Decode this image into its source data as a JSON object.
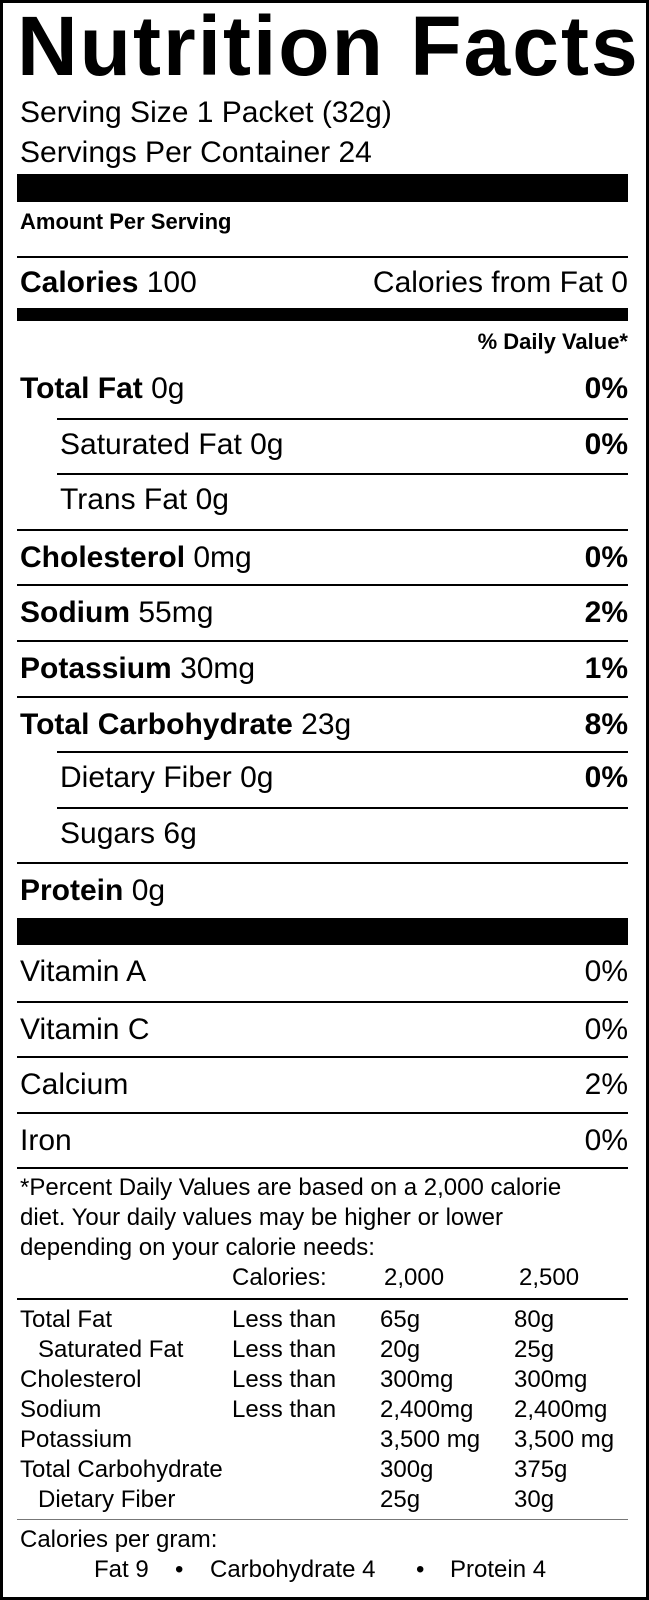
{
  "title": "Nutrition Facts",
  "serving_size": "Serving Size 1 Packet (32g)",
  "servings_per_container": "Servings Per Container 24",
  "amount_per_serving": "Amount Per Serving",
  "calories": {
    "label": "Calories",
    "value": "100",
    "from_fat": "Calories from Fat 0"
  },
  "daily_value_header": "% Daily Value*",
  "nutrients": [
    {
      "name": "Total Fat",
      "amount": "0g",
      "dv": "0%",
      "bold": true,
      "indent": false
    },
    {
      "name": "Saturated Fat",
      "amount": "0g",
      "dv": "0%",
      "bold": false,
      "indent": true
    },
    {
      "name": "Trans Fat",
      "amount": "0g",
      "dv": "",
      "bold": false,
      "indent": true
    },
    {
      "name": "Cholesterol",
      "amount": "0mg",
      "dv": "0%",
      "bold": true,
      "indent": false
    },
    {
      "name": "Sodium",
      "amount": "55mg",
      "dv": "2%",
      "bold": true,
      "indent": false
    },
    {
      "name": "Potassium",
      "amount": "30mg",
      "dv": "1%",
      "bold": true,
      "indent": false
    },
    {
      "name": "Total Carbohydrate",
      "amount": "23g",
      "dv": "8%",
      "bold": true,
      "indent": false
    },
    {
      "name": "Dietary Fiber",
      "amount": "0g",
      "dv": "0%",
      "bold": false,
      "indent": true
    },
    {
      "name": "Sugars",
      "amount": "6g",
      "dv": "",
      "bold": false,
      "indent": true
    },
    {
      "name": "Protein",
      "amount": "0g",
      "dv": "",
      "bold": true,
      "indent": false
    }
  ],
  "vitamins": [
    {
      "name": "Vitamin A",
      "dv": "0%"
    },
    {
      "name": "Vitamin C",
      "dv": "0%"
    },
    {
      "name": "Calcium",
      "dv": "2%"
    },
    {
      "name": "Iron",
      "dv": "0%"
    }
  ],
  "footnote": [
    "*Percent Daily Values are based on a 2,000 calorie",
    "diet. Your daily values may be higher or lower",
    "depending on your calorie needs:"
  ],
  "reference_table": {
    "header": [
      "Calories:",
      "2,000",
      "2,500"
    ],
    "rows": [
      {
        "name": "Total Fat",
        "qualifier": "Less than",
        "c2000": "65g",
        "c2500": "80g",
        "indent": false
      },
      {
        "name": "Saturated Fat",
        "qualifier": "Less than",
        "c2000": "20g",
        "c2500": "25g",
        "indent": true
      },
      {
        "name": "Cholesterol",
        "qualifier": "Less than",
        "c2000": "300mg",
        "c2500": "300mg",
        "indent": false
      },
      {
        "name": "Sodium",
        "qualifier": "Less than",
        "c2000": "2,400mg",
        "c2500": "2,400mg",
        "indent": false
      },
      {
        "name": "Potassium",
        "qualifier": "",
        "c2000": "3,500 mg",
        "c2500": "3,500 mg",
        "indent": false
      },
      {
        "name": "Total Carbohydrate",
        "qualifier": "",
        "c2000": "300g",
        "c2500": "375g",
        "indent": false
      },
      {
        "name": "Dietary Fiber",
        "qualifier": "",
        "c2000": "25g",
        "c2500": "30g",
        "indent": true
      }
    ]
  },
  "calories_per_gram": {
    "label": "Calories per gram:",
    "items": [
      "Fat 9",
      "Carbohydrate 4",
      "Protein 4"
    ],
    "separator": "•"
  }
}
